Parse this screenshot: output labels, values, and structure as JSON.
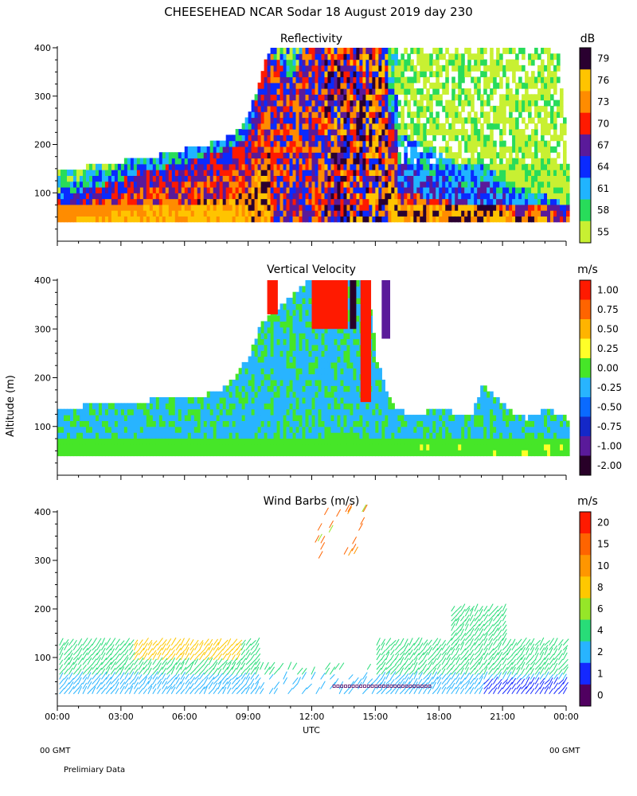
{
  "title": "CHEESEHEAD   NCAR Sodar   18 August 2019   day 230",
  "footer": {
    "left_gmt": "00 GMT",
    "right_gmt": "00 GMT",
    "note": "Prelimiary Data"
  },
  "shared_axes": {
    "ylabel": "Altitude (m)",
    "xlabel": "UTC",
    "x_ticks": [
      "00:00",
      "03:00",
      "06:00",
      "09:00",
      "12:00",
      "15:00",
      "18:00",
      "21:00",
      "00:00"
    ],
    "y_ticks": [
      100,
      200,
      300,
      400
    ],
    "ylim": [
      0,
      400
    ],
    "xlim_hours": [
      0,
      24
    ]
  },
  "chart_data": [
    {
      "type": "heatmap",
      "title": "Reflectivity",
      "unit": "dB",
      "colorbar_labels": [
        "79",
        "76",
        "73",
        "70",
        "67",
        "64",
        "61",
        "58",
        "55"
      ],
      "colorbar_colors": [
        "#2a0030",
        "#ffc400",
        "#ff8c00",
        "#ff1a00",
        "#5a1a9a",
        "#0a2aff",
        "#20b4ff",
        "#28dc5a",
        "#c8f032"
      ],
      "x_hours": [
        0,
        0.5,
        1,
        1.5,
        2,
        2.5,
        3,
        3.5,
        4,
        4.5,
        5,
        5.5,
        6,
        6.5,
        7,
        7.5,
        8,
        8.5,
        9,
        9.5,
        10,
        10.5,
        11,
        11.5,
        12,
        12.5,
        13,
        13.5,
        14,
        14.5,
        15,
        15.5,
        16,
        16.5,
        17,
        17.5,
        18,
        18.5,
        19,
        19.5,
        20,
        20.5,
        21,
        21.5,
        22,
        22.5,
        23,
        23.5,
        24
      ],
      "signal_top_m": [
        140,
        140,
        145,
        150,
        150,
        155,
        160,
        165,
        170,
        170,
        175,
        180,
        185,
        190,
        195,
        200,
        210,
        225,
        260,
        330,
        400,
        400,
        400,
        400,
        400,
        400,
        400,
        400,
        400,
        400,
        400,
        400,
        400,
        400,
        400,
        400,
        400,
        400,
        400,
        400,
        400,
        400,
        400,
        400,
        400,
        400,
        400,
        400,
        180
      ],
      "core_top_m": [
        70,
        80,
        90,
        95,
        100,
        105,
        110,
        120,
        130,
        130,
        135,
        140,
        145,
        150,
        160,
        165,
        170,
        180,
        200,
        300,
        380,
        360,
        320,
        400,
        400,
        400,
        400,
        400,
        400,
        360,
        300,
        250,
        200,
        190,
        180,
        170,
        160,
        150,
        140,
        140,
        150,
        130,
        110,
        100,
        90,
        85,
        80,
        75,
        60
      ]
    },
    {
      "type": "heatmap",
      "title": "Vertical Velocity",
      "unit": "m/s",
      "colorbar_labels": [
        "1.00",
        "0.75",
        "0.50",
        "0.25",
        "0.00",
        "-0.25",
        "-0.50",
        "-0.75",
        "-1.00",
        "-2.00"
      ],
      "colorbar_colors": [
        "#ff1a00",
        "#ff6400",
        "#ffb400",
        "#ffff28",
        "#46e628",
        "#28b4ff",
        "#0a6aff",
        "#1428c8",
        "#5a1a9a",
        "#280028"
      ],
      "x_hours": [
        0,
        0.5,
        1,
        1.5,
        2,
        2.5,
        3,
        3.5,
        4,
        4.5,
        5,
        5.5,
        6,
        6.5,
        7,
        7.5,
        8,
        8.5,
        9,
        9.5,
        10,
        10.5,
        11,
        11.5,
        12,
        12.5,
        13,
        13.5,
        14,
        14.5,
        15,
        15.5,
        16,
        16.5,
        17,
        17.5,
        18,
        18.5,
        19,
        19.5,
        20,
        20.5,
        21,
        21.5,
        22,
        22.5,
        23,
        23.5,
        24
      ],
      "signal_top_m": [
        130,
        125,
        135,
        140,
        140,
        140,
        140,
        140,
        145,
        150,
        155,
        160,
        160,
        160,
        160,
        165,
        180,
        210,
        240,
        300,
        330,
        340,
        360,
        380,
        400,
        400,
        400,
        400,
        400,
        400,
        230,
        160,
        130,
        120,
        120,
        125,
        130,
        125,
        120,
        120,
        180,
        160,
        140,
        120,
        110,
        120,
        130,
        120,
        110
      ],
      "updraft_cores": [
        {
          "x_start": 9.9,
          "x_end": 10.4,
          "y_start": 330,
          "y_end": 400,
          "value": 1.0
        },
        {
          "x_start": 12.0,
          "x_end": 13.7,
          "y_start": 300,
          "y_end": 400,
          "value": 1.0
        },
        {
          "x_start": 14.3,
          "x_end": 14.8,
          "y_start": 150,
          "y_end": 400,
          "value": 1.0
        }
      ],
      "downdraft_cores": [
        {
          "x_start": 13.8,
          "x_end": 14.1,
          "y_start": 300,
          "y_end": 400,
          "value": -2.0
        },
        {
          "x_start": 15.3,
          "x_end": 15.7,
          "y_start": 280,
          "y_end": 400,
          "value": -1.0
        }
      ]
    },
    {
      "type": "scatter",
      "title": "Wind Barbs (m/s)",
      "unit": "m/s",
      "colorbar_labels": [
        "20",
        "15",
        "10",
        "8",
        "6",
        "4",
        "2",
        "1",
        "0"
      ],
      "colorbar_colors": [
        "#ff1a00",
        "#ff6400",
        "#ff9600",
        "#ffc800",
        "#96e628",
        "#28dc78",
        "#28b4ff",
        "#1428ff",
        "#500060"
      ],
      "barbs_summary": {
        "dense_layer_m": [
          20,
          130
        ],
        "upper_barbs_hours": [
          12.0,
          14.5
        ],
        "upper_barbs_m": [
          300,
          410
        ]
      }
    }
  ]
}
